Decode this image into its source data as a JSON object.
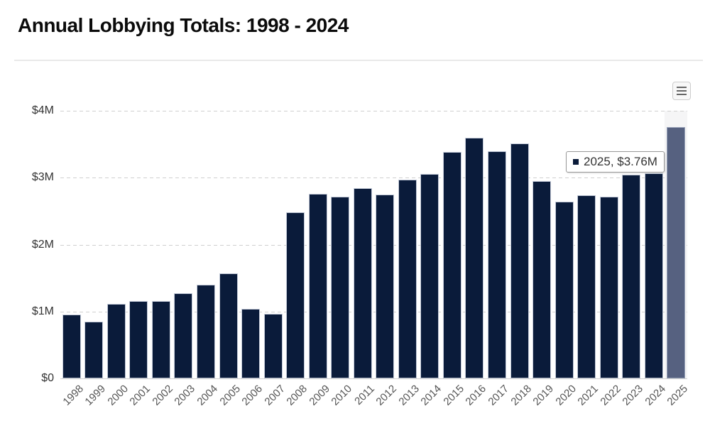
{
  "page": {
    "title": "Annual Lobbying Totals: 1998 - 2024"
  },
  "toolbar": {
    "export_menu_icon": "hamburger-menu-icon"
  },
  "chart_data": {
    "type": "bar",
    "title": "Annual Lobbying Totals: 1998 - 2024",
    "xlabel": "",
    "ylabel": "",
    "unit": "USD millions",
    "categories": [
      "1998",
      "1999",
      "2000",
      "2001",
      "2002",
      "2003",
      "2004",
      "2005",
      "2006",
      "2007",
      "2008",
      "2009",
      "2010",
      "2011",
      "2012",
      "2013",
      "2014",
      "2015",
      "2016",
      "2017",
      "2018",
      "2019",
      "2020",
      "2021",
      "2022",
      "2023",
      "2024",
      "2025"
    ],
    "values": [
      0.96,
      0.85,
      1.11,
      1.16,
      1.16,
      1.27,
      1.4,
      1.57,
      1.04,
      0.97,
      2.48,
      2.76,
      2.72,
      2.84,
      2.75,
      2.97,
      3.06,
      3.38,
      3.6,
      3.4,
      3.51,
      2.95,
      2.64,
      2.74,
      2.72,
      3.05,
      3.07,
      3.76
    ],
    "ylim": [
      0,
      4
    ],
    "yticks": [
      {
        "value": 0,
        "label": "$0"
      },
      {
        "value": 1,
        "label": "$1M"
      },
      {
        "value": 2,
        "label": "$2M"
      },
      {
        "value": 3,
        "label": "$3M"
      },
      {
        "value": 4,
        "label": "$4M"
      }
    ],
    "grid": "dashed-horizontal",
    "legend": "none",
    "highlighted_category": "2025",
    "tooltip": {
      "text": "2025, $3.76M",
      "marker_color": "#0a1b3a"
    },
    "colors": {
      "bar": "#0a1b3a",
      "bar_border": "#c4cbd9",
      "hover_bar": "#566180",
      "hover_bar_border": "#9aa4ba",
      "hover_band": "#f5f5f6",
      "gridline": "#cfcfcf",
      "axis_label": "#555555"
    }
  }
}
